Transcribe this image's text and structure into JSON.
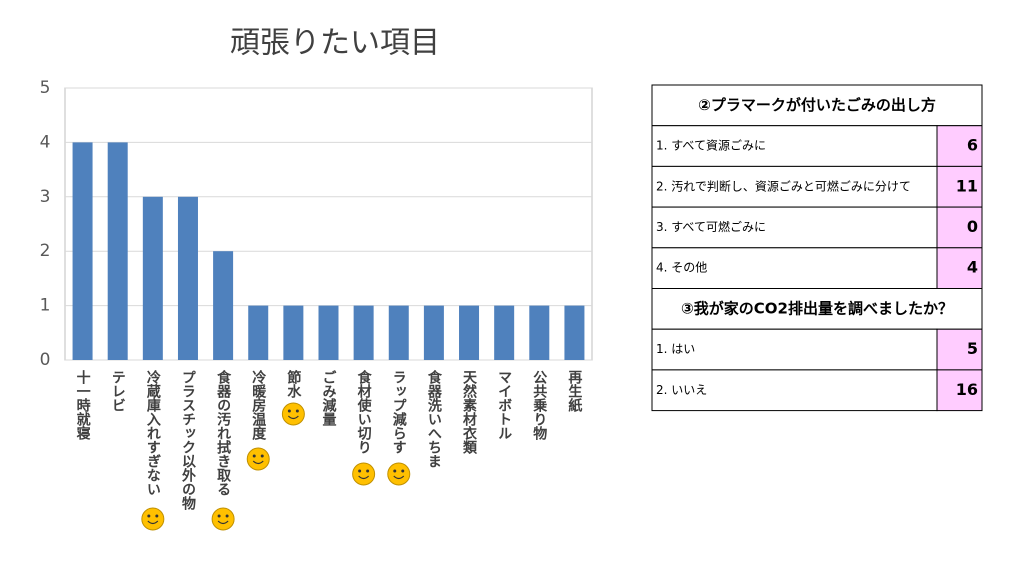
{
  "chart_data": {
    "type": "bar",
    "title": "頑張りたい項目",
    "categories": [
      "十一時就寝",
      "テレビ",
      "冷蔵庫入れすぎない",
      "プラスチック以外の物",
      "食器の汚れ拭き取る",
      "冷暖房温度",
      "節水",
      "ごみ減量",
      "食材使い切り",
      "ラップ減らす",
      "食器洗いへちま",
      "天然素材衣類",
      "マイボトル",
      "公共乗り物",
      "再生紙"
    ],
    "values": [
      4,
      4,
      3,
      3,
      2,
      1,
      1,
      1,
      1,
      1,
      1,
      1,
      1,
      1,
      1
    ],
    "smiley": [
      false,
      false,
      true,
      false,
      true,
      true,
      true,
      false,
      true,
      true,
      false,
      false,
      false,
      false,
      false
    ],
    "color": "#4f81bd",
    "ylim": [
      0,
      5
    ],
    "yticks": [
      0,
      1,
      2,
      3,
      4,
      5
    ],
    "grid": true
  },
  "table": {
    "sections": [
      {
        "title": "②プラマークが付いたごみの出し方",
        "rows": [
          [
            "1. すべて資源ごみに",
            6
          ],
          [
            "2. 汚れで判断し、資源ごみと可燃ごみに分けて",
            11
          ],
          [
            "3. すべて可燃ごみに",
            0
          ],
          [
            "4. その他",
            4
          ]
        ]
      },
      {
        "title": "③我が家のCO2排出量を調べましたか？",
        "rows": [
          [
            "1. はい",
            5
          ],
          [
            "2. いいえ",
            16
          ]
        ]
      }
    ]
  }
}
